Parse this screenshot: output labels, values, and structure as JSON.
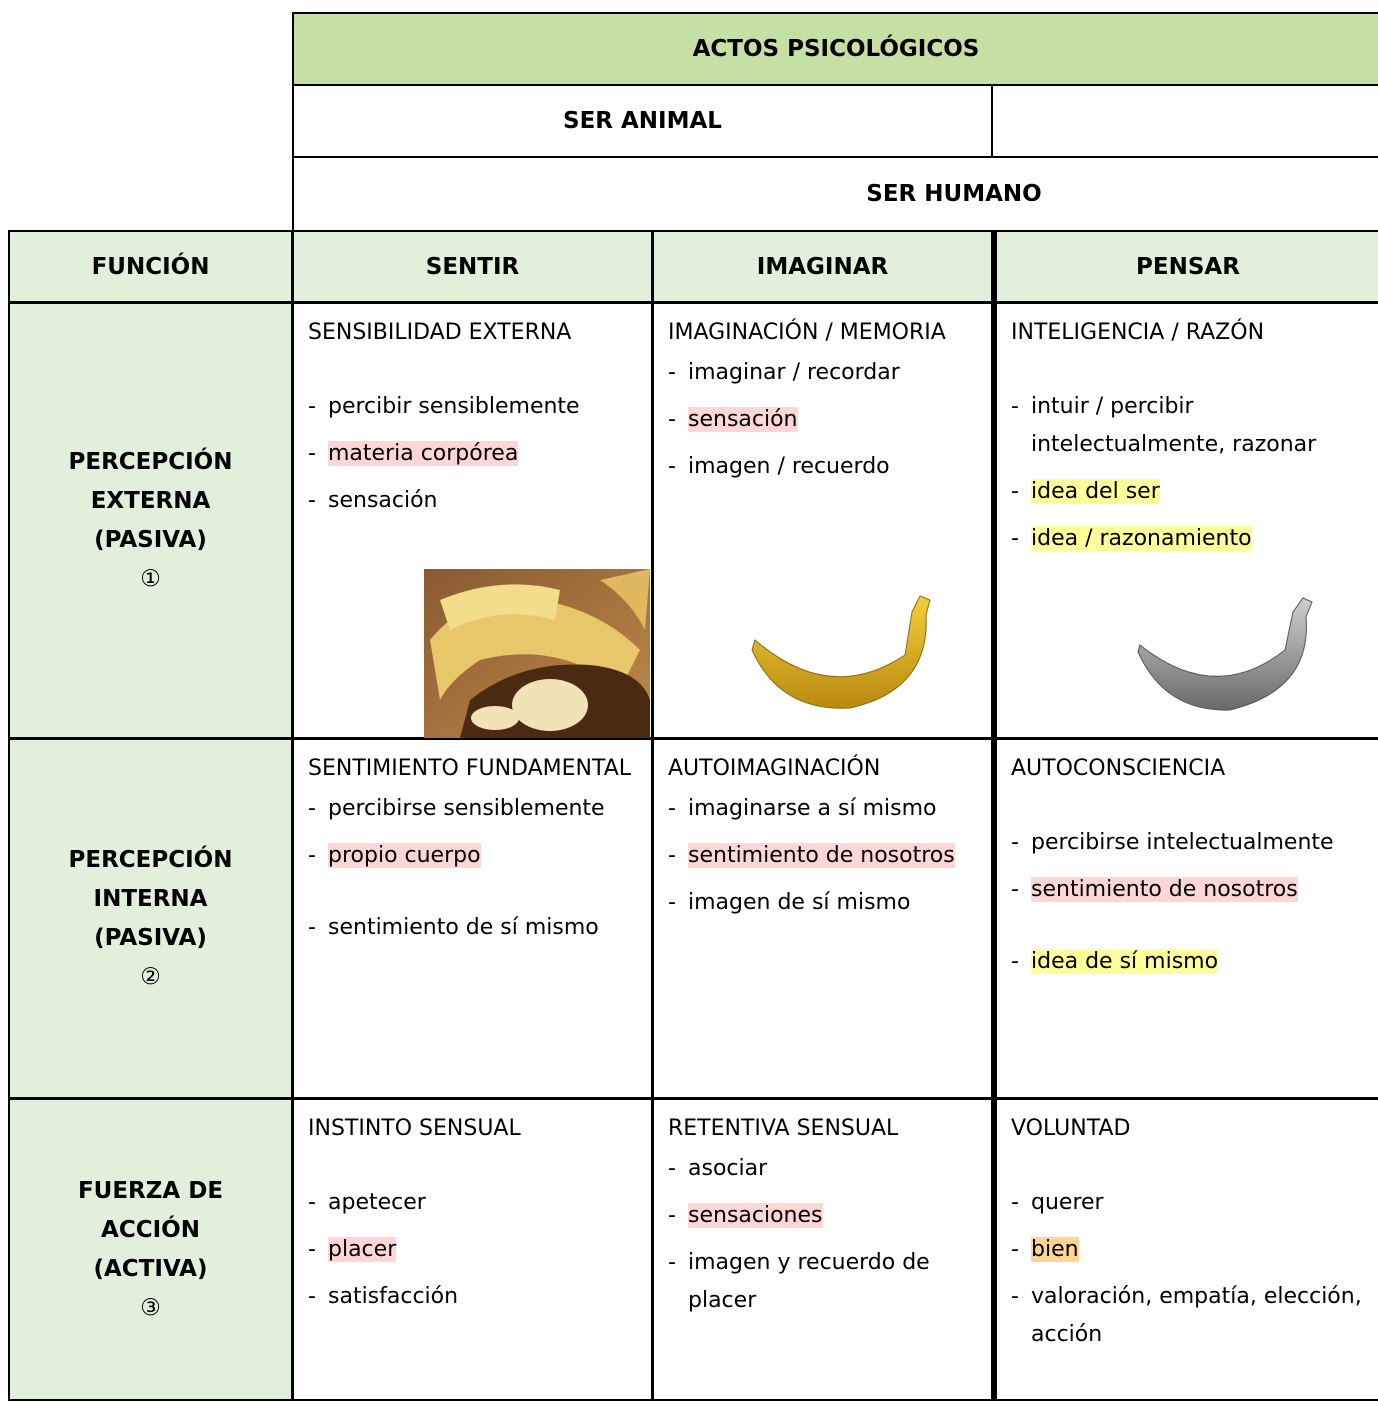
{
  "header": {
    "title": "ACTOS PSICOLÓGICOS",
    "animal": "SER ANIMAL",
    "human": "SER HUMANO"
  },
  "table": {
    "columns": [
      "FUNCIÓN",
      "SENTIR",
      "IMAGINAR",
      "PENSAR"
    ],
    "rows": [
      {
        "label": [
          "PERCEPCIÓN",
          "EXTERNA",
          "(PASIVA)",
          "①"
        ],
        "cells": [
          {
            "title": "SENSIBILIDAD EXTERNA",
            "items": [
              {
                "marker": "-",
                "text": "percibir sensiblemente"
              },
              {
                "marker": "-",
                "text": "materia corpórea",
                "highlight": "#ffd6d6"
              },
              {
                "marker": "-",
                "text": "sensación"
              }
            ]
          },
          {
            "title": "IMAGINACIÓN / MEMORIA",
            "items": [
              {
                "marker": "-",
                "text": "imaginar / recordar"
              },
              {
                "marker": "-",
                "text": "sensación",
                "highlight": "#ffd6d6"
              },
              {
                "marker": "-",
                "text": "imagen / recuerdo"
              }
            ]
          },
          {
            "title": "INTELIGENCIA / RAZÓN",
            "items": [
              {
                "marker": "-",
                "text": "intuir / percibir intelectualmente, razonar"
              },
              {
                "marker": "-",
                "text": "idea del ser",
                "highlight": "#ffff99"
              },
              {
                "marker": "-",
                "text": "idea / razonamiento",
                "highlight": "#ffff99"
              }
            ]
          }
        ]
      },
      {
        "label": [
          "PERCEPCIÓN",
          "INTERNA",
          "(PASIVA)",
          "②"
        ],
        "cells": [
          {
            "title": "SENTIMIENTO FUNDAMENTAL",
            "items": [
              {
                "marker": "-",
                "text": "percibirse sensiblemente"
              },
              {
                "marker": "-",
                "text": "propio cuerpo",
                "highlight": "#ffd6d6"
              },
              {
                "marker": "-",
                "text": "sentimiento de sí mismo"
              }
            ]
          },
          {
            "title": "AUTOIMAGINACIÓN",
            "items": [
              {
                "marker": "-",
                "text": "imaginarse a sí mismo"
              },
              {
                "marker": "-",
                "text": "sentimiento de nosotros",
                "highlight": "#ffd6d6"
              },
              {
                "marker": "-",
                "text": "imagen de sí mismo"
              }
            ]
          },
          {
            "title": "AUTOCONSCIENCIA",
            "items": [
              {
                "marker": "-",
                "text": "percibirse intelectualmente"
              },
              {
                "marker": "-",
                "text": "sentimiento de nosotros",
                "highlight": "#ffd6d6"
              },
              {
                "marker": "-",
                "text": "idea de sí mismo",
                "highlight": "#ffff99"
              }
            ]
          }
        ]
      },
      {
        "label": [
          "FUERZA DE",
          "ACCIÓN",
          "(ACTIVA)",
          "③"
        ],
        "cells": [
          {
            "title": "INSTINTO SENSUAL",
            "items": [
              {
                "marker": "-",
                "text": "apetecer"
              },
              {
                "marker": "-",
                "text": "placer",
                "highlight": "#ffd6d6"
              },
              {
                "marker": "-",
                "text": "satisfacción"
              }
            ]
          },
          {
            "title": "RETENTIVA SENSUAL",
            "items": [
              {
                "marker": "-",
                "text": "asociar"
              },
              {
                "marker": "-",
                "text": "sensaciones",
                "highlight": "#ffd6d6"
              },
              {
                "marker": "-",
                "text": "imagen y recuerdo de placer"
              }
            ]
          },
          {
            "title": "VOLUNTAD",
            "items": [
              {
                "marker": "-",
                "text": "querer"
              },
              {
                "marker": "-",
                "text": "bien",
                "highlight": "#ffd591"
              },
              {
                "marker": "-",
                "text": "valoración, empatía, elección, acción"
              }
            ]
          }
        ]
      }
    ]
  }
}
